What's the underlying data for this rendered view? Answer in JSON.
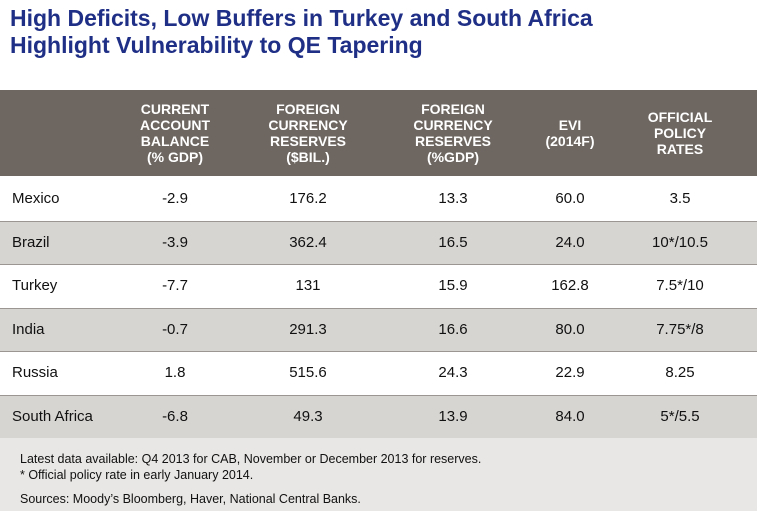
{
  "title": {
    "line1": "High Deficits, Low Buffers in Turkey and South Africa",
    "line2": "Highlight Vulnerability to QE Tapering"
  },
  "chart_data": {
    "type": "table",
    "title": "High Deficits, Low Buffers in Turkey and South Africa Highlight Vulnerability to QE Tapering",
    "columns": [
      {
        "lines": [
          ""
        ]
      },
      {
        "lines": [
          "CURRENT",
          "ACCOUNT",
          "BALANCE",
          "(% GDP)"
        ]
      },
      {
        "lines": [
          "FOREIGN",
          "CURRENCY",
          "RESERVES",
          "($BIL.)"
        ]
      },
      {
        "lines": [
          "FOREIGN",
          "CURRENCY",
          "RESERVES",
          "(%GDP)"
        ]
      },
      {
        "lines": [
          "EVI",
          "(2014F)"
        ]
      },
      {
        "lines": [
          "OFFICIAL",
          "POLICY",
          "RATES"
        ]
      }
    ],
    "rows": [
      [
        "Mexico",
        "-2.9",
        "176.2",
        "13.3",
        "60.0",
        "3.5"
      ],
      [
        "Brazil",
        "-3.9",
        "362.4",
        "16.5",
        "24.0",
        "10*/10.5"
      ],
      [
        "Turkey",
        "-7.7",
        "131",
        "15.9",
        "162.8",
        "7.5*/10"
      ],
      [
        "India",
        "-0.7",
        "291.3",
        "16.6",
        "80.0",
        "7.75*/8"
      ],
      [
        "Russia",
        "1.8",
        "515.6",
        "24.3",
        "22.9",
        "8.25"
      ],
      [
        "South Africa",
        "-6.8",
        "49.3",
        "13.9",
        "84.0",
        "5*/5.5"
      ]
    ]
  },
  "notes": {
    "latest": "Latest data available: Q4 2013 for CAB, November or December 2013 for reserves.",
    "footnote": "* Official policy rate in early January 2014.",
    "sources": "Sources: Moody’s Bloomberg, Haver, National Central Banks."
  },
  "colors": {
    "title": "#1f2f86",
    "header_bg": "#6e6761",
    "shaded_row": "#d7d5d2",
    "notes_bg": "#e9e7e5"
  }
}
